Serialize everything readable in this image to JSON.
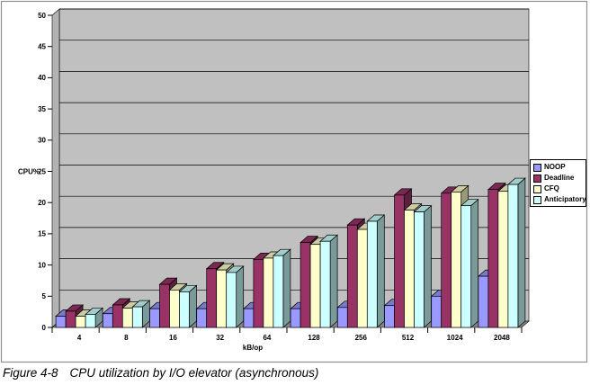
{
  "chart_data": {
    "type": "bar",
    "effect": "3d",
    "title": "",
    "xlabel": "kB/op",
    "ylabel": "CPU%",
    "ylim": [
      0,
      50
    ],
    "ytick_step": 5,
    "grid": true,
    "legend_position": "right",
    "wall_color": "#C0C0C0",
    "side_wall_color": "#B3B3B3",
    "floor_color": "#848284",
    "frame_border_color": "#909090",
    "categories": [
      "4",
      "8",
      "16",
      "32",
      "64",
      "128",
      "256",
      "512",
      "1024",
      "2048"
    ],
    "series": [
      {
        "name": "NOOP",
        "color": "#9999FF",
        "values": [
          1.8,
          2.2,
          3.0,
          3.0,
          3.0,
          3.0,
          3.2,
          3.5,
          5.0,
          8.2
        ]
      },
      {
        "name": "Deadline",
        "color": "#993366",
        "values": [
          2.6,
          3.6,
          6.9,
          9.4,
          10.9,
          13.6,
          16.4,
          21.2,
          21.5,
          22.1
        ]
      },
      {
        "name": "CFQ",
        "color": "#FFFFCC",
        "values": [
          1.8,
          3.1,
          6.0,
          9.2,
          11.1,
          13.3,
          15.7,
          18.8,
          21.7,
          21.8
        ]
      },
      {
        "name": "Anticipatory",
        "color": "#CCFFFF",
        "values": [
          2.1,
          3.3,
          5.7,
          8.8,
          11.5,
          13.8,
          17.0,
          18.5,
          19.5,
          22.9
        ]
      }
    ]
  },
  "caption": {
    "label": "Figure 4-8",
    "text": "CPU utilization by I/O elevator (asynchronous)"
  }
}
